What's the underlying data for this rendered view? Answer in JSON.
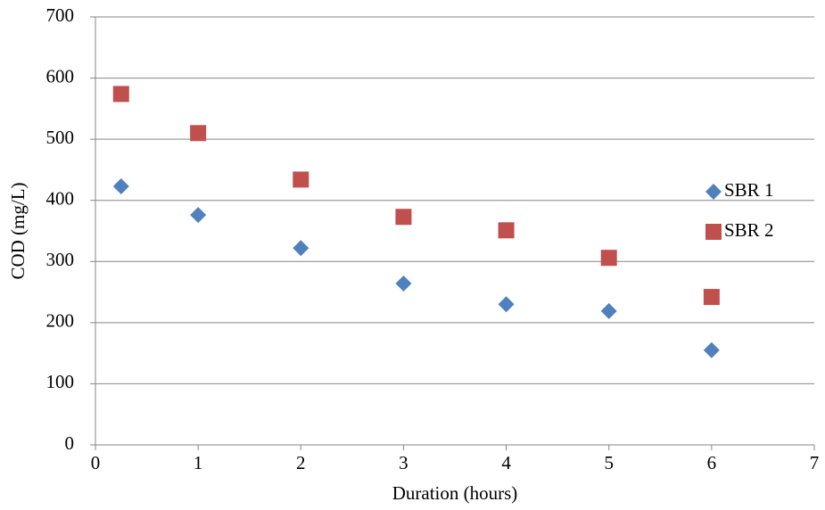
{
  "chart_data": {
    "type": "scatter",
    "x_label": "Duration (hours)",
    "y_label": "COD (mg/L)",
    "series": [
      {
        "name": "SBR 1",
        "color": "#4f81bd",
        "marker": "diamond",
        "x": [
          0.25,
          1,
          2,
          3,
          4,
          5,
          6
        ],
        "values": [
          423,
          376,
          322,
          264,
          230,
          219,
          155
        ]
      },
      {
        "name": "SBR 2",
        "color": "#c0504d",
        "marker": "square",
        "x": [
          0.25,
          1,
          2,
          3,
          4,
          5,
          6
        ],
        "values": [
          574,
          510,
          434,
          373,
          351,
          306,
          242
        ]
      }
    ],
    "xlim": [
      0,
      7
    ],
    "xticks": [
      0,
      1,
      2,
      3,
      4,
      5,
      6,
      7
    ],
    "ylim": [
      0,
      700
    ],
    "yticks": [
      0,
      100,
      200,
      300,
      400,
      500,
      600,
      700
    ],
    "grid": true,
    "legend": "right"
  }
}
